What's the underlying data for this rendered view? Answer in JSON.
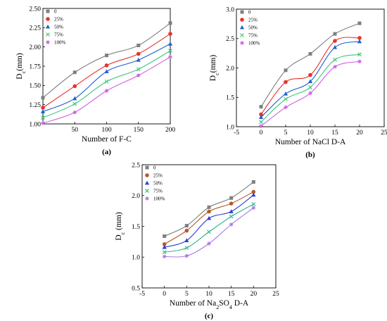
{
  "figure": {
    "series_colors": [
      "#7f7f7f",
      "#e8332b",
      "#1f5fd6",
      "#3ec77a",
      "#cf5fe3"
    ],
    "series_colors_c": [
      "#7f7f7f",
      "#b45b2a",
      "#2d3ed6",
      "#2fb58d",
      "#a47be8"
    ],
    "markers": [
      "square",
      "circle",
      "triangle",
      "x",
      "star"
    ]
  },
  "chart_data": [
    {
      "type": "scatter",
      "panel_label": "(a)",
      "xlabel": "Number of F-C",
      "ylabel_main": "D",
      "ylabel_sub": "c",
      "ylabel_unit": "(mm)",
      "xlim": [
        0,
        200
      ],
      "ylim": [
        1.0,
        2.5
      ],
      "xticks": [
        "50",
        "100",
        "150",
        "200"
      ],
      "yticks": [
        "1.00",
        "1.25",
        "1.50",
        "1.75",
        "2.00",
        "2.25",
        "2.50"
      ],
      "x": [
        0,
        50,
        100,
        150,
        200
      ],
      "legend_position": "top-left",
      "fit_lines": true,
      "series": [
        {
          "name": "0",
          "values": [
            1.34,
            1.67,
            1.89,
            2.02,
            2.31
          ]
        },
        {
          "name": "25%",
          "values": [
            1.21,
            1.49,
            1.76,
            1.91,
            2.17
          ]
        },
        {
          "name": "50%",
          "values": [
            1.16,
            1.33,
            1.68,
            1.83,
            2.04
          ]
        },
        {
          "name": "75%",
          "values": [
            1.08,
            1.26,
            1.55,
            1.71,
            1.95
          ]
        },
        {
          "name": "100%",
          "values": [
            1.01,
            1.15,
            1.43,
            1.63,
            1.87
          ]
        }
      ]
    },
    {
      "type": "scatter",
      "panel_label": "(b)",
      "xlabel": "Number of NaCl D-A",
      "ylabel_main": "D",
      "ylabel_sub": "c",
      "ylabel_unit": "(mm)",
      "xlim": [
        -5,
        25
      ],
      "ylim": [
        1.0,
        3.0
      ],
      "xticks": [
        "-5",
        "0",
        "5",
        "10",
        "15",
        "20",
        "25"
      ],
      "yticks": [
        "1.0",
        "1.5",
        "2.0",
        "2.5",
        "3.0"
      ],
      "x": [
        0,
        5,
        10,
        15,
        20
      ],
      "legend_position": "top-left",
      "fit_lines": true,
      "series": [
        {
          "name": "0",
          "values": [
            1.34,
            1.96,
            2.24,
            2.58,
            2.76
          ]
        },
        {
          "name": "25%",
          "values": [
            1.21,
            1.76,
            1.88,
            2.46,
            2.51
          ]
        },
        {
          "name": "50%",
          "values": [
            1.16,
            1.56,
            1.77,
            2.35,
            2.45
          ]
        },
        {
          "name": "75%",
          "values": [
            1.08,
            1.47,
            1.67,
            2.14,
            2.23
          ]
        },
        {
          "name": "100%",
          "values": [
            1.01,
            1.33,
            1.57,
            2.02,
            2.11
          ]
        }
      ]
    },
    {
      "type": "scatter",
      "panel_label": "(c)",
      "xlabel_prefix": "Number of Na",
      "xlabel_sub1": "2",
      "xlabel_mid": "SO",
      "xlabel_sub2": "4",
      "xlabel_suffix": " D-A",
      "ylabel_main": "D",
      "ylabel_sub": "c",
      "ylabel_unit": " (mm)",
      "xlim": [
        -5,
        25
      ],
      "ylim": [
        0.5,
        2.5
      ],
      "xticks": [
        "-5",
        "0",
        "5",
        "10",
        "15",
        "20",
        "25"
      ],
      "yticks": [
        "0.5",
        "1.0",
        "1.5",
        "2.0",
        "2.5"
      ],
      "x": [
        0,
        5,
        10,
        15,
        20
      ],
      "legend_position": "top-left",
      "fit_lines": true,
      "series": [
        {
          "name": "0",
          "values": [
            1.34,
            1.51,
            1.81,
            1.96,
            2.22
          ]
        },
        {
          "name": "25%",
          "values": [
            1.21,
            1.43,
            1.74,
            1.87,
            2.06
          ]
        },
        {
          "name": "50%",
          "values": [
            1.16,
            1.27,
            1.63,
            1.74,
            2.01
          ]
        },
        {
          "name": "75%",
          "values": [
            1.08,
            1.15,
            1.41,
            1.66,
            1.86
          ]
        },
        {
          "name": "100%",
          "values": [
            1.01,
            1.02,
            1.22,
            1.53,
            1.8
          ]
        }
      ]
    }
  ]
}
